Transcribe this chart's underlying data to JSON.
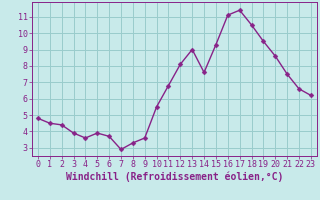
{
  "x": [
    0,
    1,
    2,
    3,
    4,
    5,
    6,
    7,
    8,
    9,
    10,
    11,
    12,
    13,
    14,
    15,
    16,
    17,
    18,
    19,
    20,
    21,
    22,
    23
  ],
  "y": [
    4.8,
    4.5,
    4.4,
    3.9,
    3.6,
    3.9,
    3.7,
    2.9,
    3.3,
    3.6,
    5.5,
    6.8,
    8.1,
    9.0,
    7.6,
    9.3,
    11.1,
    11.4,
    10.5,
    9.5,
    8.6,
    7.5,
    6.6,
    6.2
  ],
  "line_color": "#882288",
  "marker": "D",
  "marker_size": 2.5,
  "line_width": 1.0,
  "bg_color": "#c8eaea",
  "grid_color": "#99cccc",
  "xlabel": "Windchill (Refroidissement éolien,°C)",
  "xlabel_color": "#882288",
  "tick_color": "#882288",
  "ylim": [
    2.5,
    11.9
  ],
  "yticks": [
    3,
    4,
    5,
    6,
    7,
    8,
    9,
    10,
    11
  ],
  "xlim": [
    -0.5,
    23.5
  ],
  "xticks": [
    0,
    1,
    2,
    3,
    4,
    5,
    6,
    7,
    8,
    9,
    10,
    11,
    12,
    13,
    14,
    15,
    16,
    17,
    18,
    19,
    20,
    21,
    22,
    23
  ],
  "tick_fontsize": 6,
  "xlabel_fontsize": 7
}
